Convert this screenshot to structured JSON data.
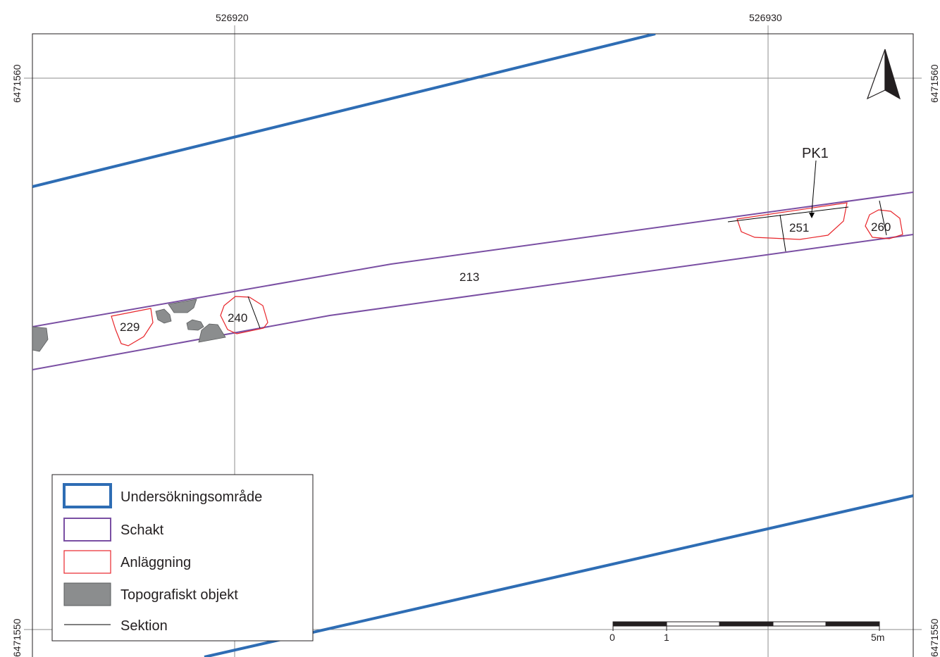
{
  "map": {
    "grid": {
      "x_labels": [
        "526920",
        "526930"
      ],
      "y_labels": [
        "6471560",
        "6471550"
      ]
    },
    "features": {
      "trench_label": "213",
      "anlaggningar": [
        "229",
        "240",
        "251",
        "260"
      ],
      "profile_label": "PK1"
    },
    "north_arrow": {
      "icon": "north-arrow-icon"
    },
    "legend": {
      "items": [
        {
          "label": "Undersökningsområde",
          "icon": "blue-outline-swatch"
        },
        {
          "label": "Schakt",
          "icon": "purple-outline-swatch"
        },
        {
          "label": "Anläggning",
          "icon": "red-outline-swatch"
        },
        {
          "label": "Topografiskt objekt",
          "icon": "grey-fill-swatch"
        },
        {
          "label": "Sektion",
          "icon": "black-line-swatch"
        }
      ]
    },
    "scale_bar": {
      "labels": [
        "0",
        "1",
        "5m"
      ]
    },
    "colors": {
      "survey_area": "#2e6db4",
      "trench": "#7a4fa3",
      "feature": "#e8262b",
      "topographic": "#8b8d8e",
      "section": "#000000",
      "grid": "#8c8c8c"
    }
  }
}
